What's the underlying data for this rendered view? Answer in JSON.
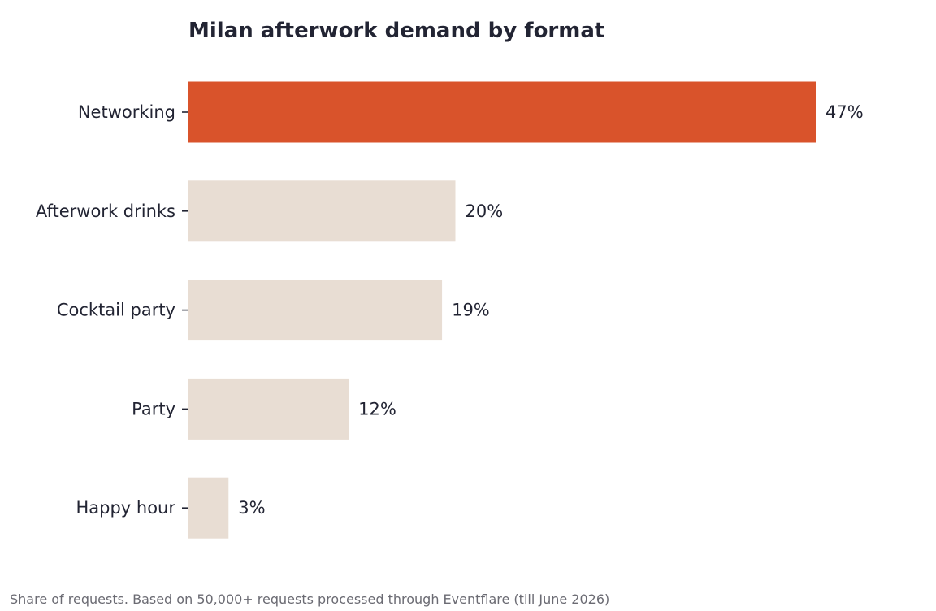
{
  "chart_data": {
    "type": "bar",
    "orientation": "horizontal",
    "title": "Milan afterwork demand by format",
    "xlabel": "",
    "ylabel": "",
    "categories": [
      "Networking",
      "Afterwork drinks",
      "Cocktail party",
      "Party",
      "Happy hour"
    ],
    "values": [
      47,
      20,
      19,
      12,
      3
    ],
    "value_labels": [
      "47%",
      "20%",
      "19%",
      "12%",
      "3%"
    ],
    "xlim": [
      0,
      47
    ],
    "grid": false,
    "legend": "none",
    "highlight_color": "#d9532b",
    "base_color": "#e8ddd3",
    "highlight_index": 0
  },
  "footnote": "Share of requests. Based on 50,000+ requests processed through Eventflare (till June 2026)"
}
